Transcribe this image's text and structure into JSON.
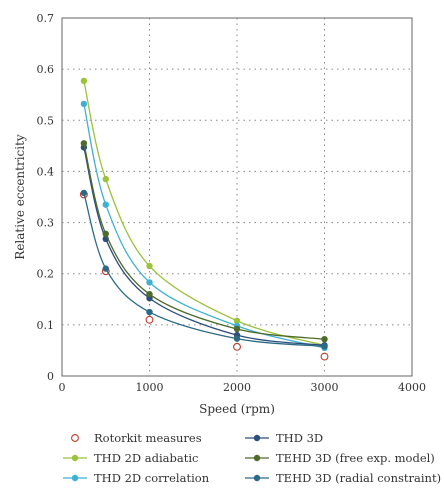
{
  "chart_data": {
    "type": "line",
    "xlabel": "Speed (rpm)",
    "ylabel": "Relative eccentricity",
    "xlim": [
      0,
      4000
    ],
    "ylim": [
      0,
      0.7
    ],
    "xticks": [
      "0",
      "1000",
      "2000",
      "3000",
      "4000"
    ],
    "yticks": [
      "0",
      "0.1",
      "0.2",
      "0.3",
      "0.4",
      "0.5",
      "0.6",
      "0.7"
    ],
    "grid": "dotted",
    "legend_position": "bottom",
    "series": [
      {
        "name": "Rotorkit measures",
        "color": "#c0392b",
        "style": "open-markers",
        "x": [
          250,
          500,
          1000,
          2000,
          3000
        ],
        "y": [
          0.355,
          0.205,
          0.11,
          0.057,
          0.038
        ]
      },
      {
        "name": "THD 2D adiabatic",
        "color": "#9bc23b",
        "style": "line-markers",
        "x": [
          250,
          500,
          1000,
          2000,
          3000
        ],
        "y": [
          0.577,
          0.385,
          0.215,
          0.108,
          0.06
        ]
      },
      {
        "name": "THD 2D correlation",
        "color": "#3fb0d4",
        "style": "line-markers",
        "x": [
          250,
          500,
          1000,
          2000,
          3000
        ],
        "y": [
          0.532,
          0.335,
          0.183,
          0.098,
          0.055
        ]
      },
      {
        "name": "THD 3D",
        "color": "#2c4e7a",
        "style": "line-markers",
        "x": [
          250,
          500,
          1000,
          2000,
          3000
        ],
        "y": [
          0.447,
          0.268,
          0.152,
          0.08,
          0.06
        ]
      },
      {
        "name": "TEHD 3D (free exp. model)",
        "color": "#4f6b2a",
        "style": "line-markers",
        "x": [
          250,
          500,
          1000,
          2000,
          3000
        ],
        "y": [
          0.455,
          0.278,
          0.16,
          0.092,
          0.072
        ]
      },
      {
        "name": "TEHD 3D (radial constraint)",
        "color": "#2b6a86",
        "style": "line-markers",
        "x": [
          250,
          500,
          1000,
          2000,
          3000
        ],
        "y": [
          0.358,
          0.21,
          0.125,
          0.073,
          0.058
        ]
      }
    ]
  }
}
